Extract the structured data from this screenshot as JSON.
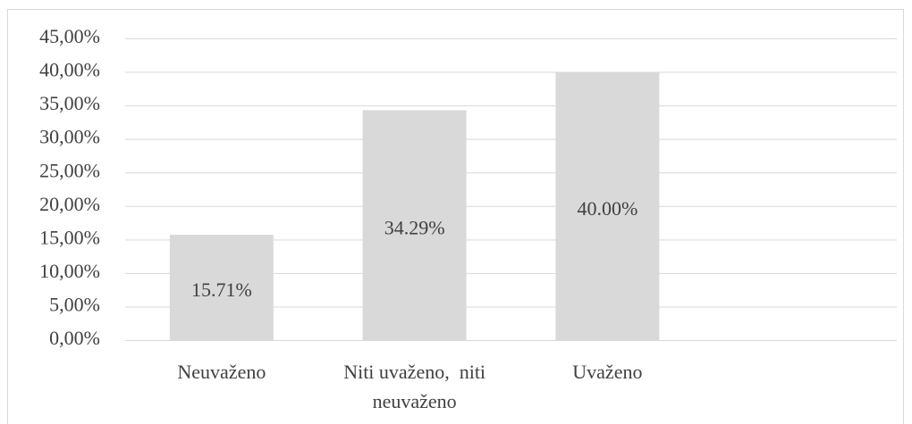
{
  "chart_data": {
    "type": "bar",
    "categories": [
      "Neuvaženo",
      "Niti uvaženo,  niti neuvaženo",
      "Uvaženo",
      null
    ],
    "values": [
      15.71,
      34.29,
      40.0,
      null
    ],
    "value_labels": [
      "15.71%",
      "34.29%",
      "40.00%",
      null
    ],
    "color": "#d9d9d9",
    "ylim": [
      0,
      45
    ],
    "yticks": [
      {
        "value": 0,
        "label": "0,00%"
      },
      {
        "value": 5,
        "label": "5,00%"
      },
      {
        "value": 10,
        "label": "10,00%"
      },
      {
        "value": 15,
        "label": "15,00%"
      },
      {
        "value": 20,
        "label": "20,00%"
      },
      {
        "value": 25,
        "label": "25,00%"
      },
      {
        "value": 30,
        "label": "30,00%"
      },
      {
        "value": 35,
        "label": "35,00%"
      },
      {
        "value": 40,
        "label": "40,00%"
      },
      {
        "value": 45,
        "label": "45,00%"
      }
    ],
    "grid": true
  }
}
